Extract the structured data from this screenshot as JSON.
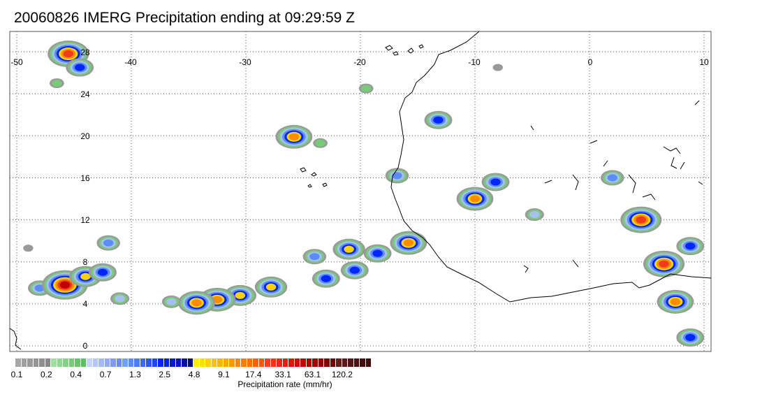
{
  "title": "20060826 IMERG Precipitation ending at 09:29:59 Z",
  "map": {
    "lon_range": [
      -50,
      10
    ],
    "lat_range": [
      -0.5,
      30
    ],
    "lon_ticks": [
      "-50",
      "-40",
      "-30",
      "-20",
      "-10",
      "0",
      "10"
    ],
    "lat_ticks": [
      "28",
      "24",
      "20",
      "16",
      "12",
      "8",
      "4",
      "0"
    ],
    "gridlines": "dotted",
    "coastline_color": "#000000",
    "precip_cells": [
      {
        "lon": -45.5,
        "lat": 27.8,
        "intensity": 17.4
      },
      {
        "lon": -44.5,
        "lat": 26.5,
        "intensity": 2.5
      },
      {
        "lon": -46.5,
        "lat": 25.0,
        "intensity": 0.4
      },
      {
        "lon": -25.8,
        "lat": 19.9,
        "intensity": 9.1
      },
      {
        "lon": -23.5,
        "lat": 19.3,
        "intensity": 0.4
      },
      {
        "lon": -16.8,
        "lat": 16.2,
        "intensity": 1.3
      },
      {
        "lon": -10.0,
        "lat": 14.0,
        "intensity": 9.1
      },
      {
        "lon": -8.2,
        "lat": 15.6,
        "intensity": 2.5
      },
      {
        "lon": 4.5,
        "lat": 12.0,
        "intensity": 17.4
      },
      {
        "lon": 6.5,
        "lat": 7.8,
        "intensity": 17.4
      },
      {
        "lon": 7.5,
        "lat": 4.2,
        "intensity": 9.1
      },
      {
        "lon": 8.8,
        "lat": 9.5,
        "intensity": 2.5
      },
      {
        "lon": 8.8,
        "lat": 0.8,
        "intensity": 2.5
      },
      {
        "lon": -21.0,
        "lat": 9.2,
        "intensity": 4.8
      },
      {
        "lon": -18.5,
        "lat": 8.8,
        "intensity": 2.5
      },
      {
        "lon": -15.8,
        "lat": 9.8,
        "intensity": 9.1
      },
      {
        "lon": -24.0,
        "lat": 8.5,
        "intensity": 1.3
      },
      {
        "lon": -20.5,
        "lat": 7.2,
        "intensity": 2.5
      },
      {
        "lon": -23.0,
        "lat": 6.4,
        "intensity": 2.5
      },
      {
        "lon": -27.8,
        "lat": 5.6,
        "intensity": 4.8
      },
      {
        "lon": -30.5,
        "lat": 4.8,
        "intensity": 4.8
      },
      {
        "lon": -32.5,
        "lat": 4.4,
        "intensity": 9.1
      },
      {
        "lon": -34.3,
        "lat": 4.1,
        "intensity": 9.1
      },
      {
        "lon": -48.0,
        "lat": 5.5,
        "intensity": 1.3
      },
      {
        "lon": -45.8,
        "lat": 5.8,
        "intensity": 33.1
      },
      {
        "lon": -44.0,
        "lat": 6.6,
        "intensity": 4.8
      },
      {
        "lon": -42.5,
        "lat": 7.0,
        "intensity": 2.5
      },
      {
        "lon": -41.0,
        "lat": 4.5,
        "intensity": 0.7
      },
      {
        "lon": -36.5,
        "lat": 4.2,
        "intensity": 0.7
      },
      {
        "lon": -42.0,
        "lat": 9.8,
        "intensity": 1.3
      },
      {
        "lon": -19.5,
        "lat": 24.5,
        "intensity": 0.4
      },
      {
        "lon": -13.2,
        "lat": 21.5,
        "intensity": 2.5
      },
      {
        "lon": 2.0,
        "lat": 16.0,
        "intensity": 1.3
      },
      {
        "lon": -4.8,
        "lat": 12.5,
        "intensity": 0.7
      },
      {
        "lon": -49.0,
        "lat": 9.3,
        "intensity": 0.2
      },
      {
        "lon": -8.0,
        "lat": 26.5,
        "intensity": 0.2
      }
    ]
  },
  "colorbar": {
    "tick_labels": [
      "0.1",
      "0.2",
      "0.4",
      "0.7",
      "1.3",
      "2.5",
      "4.8",
      "9.1",
      "17.4",
      "33.1",
      "63.1",
      "120.2"
    ],
    "label": "Precipitation rate (mm/hr)",
    "groups": [
      {
        "colors": [
          "#a6a6a6",
          "#a0a0a0",
          "#9a9a9a",
          "#949494",
          "#8e8e8e",
          "#888888"
        ]
      },
      {
        "colors": [
          "#9be09b",
          "#8fd98f",
          "#83d283",
          "#77cb77",
          "#6bc46b",
          "#60bd60"
        ]
      },
      {
        "colors": [
          "#c6d4ff",
          "#b4c6fb",
          "#a3b8f7",
          "#91aaf3",
          "#809cef",
          "#6e8eeb"
        ]
      },
      {
        "colors": [
          "#6fa0ff",
          "#5a8df8",
          "#4a7cf2",
          "#3a6bec",
          "#2b5ae6",
          "#1c4ae0"
        ]
      },
      {
        "colors": [
          "#0026ff",
          "#0020e6",
          "#001bcc",
          "#0016b8",
          "#0011a4",
          "#000c90"
        ]
      },
      {
        "colors": [
          "#ffee00",
          "#ffe000",
          "#ffd200",
          "#ffc400",
          "#ffb600",
          "#ffa800"
        ]
      },
      {
        "colors": [
          "#ff9a00",
          "#ff8c00",
          "#ff7e00",
          "#ff7000",
          "#ff6200",
          "#ff5400"
        ]
      },
      {
        "colors": [
          "#ff3b22",
          "#f5321c",
          "#eb2916",
          "#e12010",
          "#d7170a",
          "#cd0e04"
        ]
      },
      {
        "colors": [
          "#c00000",
          "#b00000",
          "#a00000",
          "#900000",
          "#800000",
          "#700000"
        ]
      },
      {
        "colors": [
          "#661a1a",
          "#5e1616",
          "#561313",
          "#4e1010",
          "#460d0d",
          "#3e0a0a"
        ]
      }
    ]
  }
}
